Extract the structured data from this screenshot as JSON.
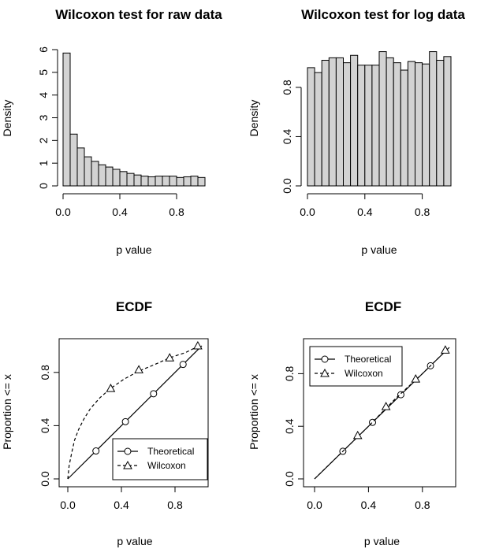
{
  "chart_data": [
    {
      "type": "bar",
      "title": "Wilcoxon test for raw data",
      "xlabel": "p value",
      "ylabel": "Density",
      "bin_edges": [
        0.0,
        0.05,
        0.1,
        0.15,
        0.2,
        0.25,
        0.3,
        0.35,
        0.4,
        0.45,
        0.5,
        0.55,
        0.6,
        0.65,
        0.7,
        0.75,
        0.8,
        0.85,
        0.9,
        0.95,
        1.0
      ],
      "values": [
        5.85,
        2.28,
        1.67,
        1.28,
        1.08,
        0.93,
        0.83,
        0.73,
        0.63,
        0.55,
        0.48,
        0.43,
        0.4,
        0.43,
        0.43,
        0.43,
        0.37,
        0.4,
        0.43,
        0.37
      ],
      "xlim": [
        0,
        1
      ],
      "ylim": [
        0,
        6
      ],
      "xticks": [
        0.0,
        0.4,
        0.8
      ],
      "xtick_labels": [
        "0.0",
        "0.4",
        "0.8"
      ],
      "yticks": [
        0,
        1,
        2,
        3,
        4,
        5,
        6
      ],
      "ytick_labels": [
        "0",
        "1",
        "2",
        "3",
        "4",
        "5",
        "6"
      ],
      "bar_color": "#d3d3d3",
      "grid": false
    },
    {
      "type": "bar",
      "title": "Wilcoxon test for log data",
      "xlabel": "p value",
      "ylabel": "Density",
      "bin_edges": [
        0.0,
        0.05,
        0.1,
        0.15,
        0.2,
        0.25,
        0.3,
        0.35,
        0.4,
        0.45,
        0.5,
        0.55,
        0.6,
        0.65,
        0.7,
        0.75,
        0.8,
        0.85,
        0.9,
        0.95,
        1.0
      ],
      "values": [
        0.96,
        0.92,
        1.02,
        1.04,
        1.04,
        1.0,
        1.06,
        0.98,
        0.98,
        0.98,
        1.09,
        1.04,
        1.0,
        0.94,
        1.01,
        1.0,
        0.99,
        1.09,
        1.02,
        1.05
      ],
      "xlim": [
        0,
        1
      ],
      "ylim": [
        0,
        1.1
      ],
      "xticks": [
        0.0,
        0.4,
        0.8
      ],
      "xtick_labels": [
        "0.0",
        "0.4",
        "0.8"
      ],
      "yticks": [
        0.0,
        0.4,
        0.8
      ],
      "ytick_labels": [
        "0.0",
        "0.4",
        "0.8"
      ],
      "bar_color": "#d3d3d3",
      "grid": false
    },
    {
      "type": "line",
      "title": "ECDF",
      "xlabel": "p value",
      "ylabel": "Proportion <= x",
      "xlim": [
        0,
        1
      ],
      "ylim": [
        0,
        1
      ],
      "xticks": [
        0.0,
        0.4,
        0.8
      ],
      "xtick_labels": [
        "0.0",
        "0.4",
        "0.8"
      ],
      "yticks": [
        0.0,
        0.4,
        0.8
      ],
      "ytick_labels": [
        "0.0",
        "0.4",
        "0.8"
      ],
      "legend_position": "bottom-right",
      "series": [
        {
          "name": "Theoretical",
          "line": "solid",
          "marker": "circle",
          "x": [
            0.0,
            1.0
          ],
          "y": [
            0.0,
            1.0
          ],
          "marker_x": [
            0.21,
            0.43,
            0.64,
            0.86
          ],
          "marker_y": [
            0.21,
            0.43,
            0.64,
            0.86
          ]
        },
        {
          "name": "Wilcoxon",
          "line": "dashed",
          "marker": "triangle",
          "x": [
            0.0,
            0.01,
            0.03,
            0.05,
            0.08,
            0.12,
            0.17,
            0.24,
            0.32,
            0.42,
            0.53,
            0.65,
            0.76,
            0.88,
            0.98
          ],
          "y": [
            0.0,
            0.1,
            0.2,
            0.29,
            0.37,
            0.45,
            0.53,
            0.61,
            0.68,
            0.75,
            0.81,
            0.86,
            0.91,
            0.95,
            1.0
          ],
          "marker_x": [
            0.32,
            0.53,
            0.76,
            0.97
          ],
          "marker_y": [
            0.68,
            0.82,
            0.91,
            1.0
          ]
        }
      ]
    },
    {
      "type": "line",
      "title": "ECDF",
      "xlabel": "p value",
      "ylabel": "Proportion <= x",
      "xlim": [
        0,
        1
      ],
      "ylim": [
        0,
        1
      ],
      "xticks": [
        0.0,
        0.4,
        0.8
      ],
      "xtick_labels": [
        "0.0",
        "0.4",
        "0.8"
      ],
      "yticks": [
        0.0,
        0.4,
        0.8
      ],
      "ytick_labels": [
        "0.0",
        "0.4",
        "0.8"
      ],
      "legend_position": "top-left",
      "series": [
        {
          "name": "Theoretical",
          "line": "solid",
          "marker": "circle",
          "x": [
            0.0,
            1.0
          ],
          "y": [
            0.0,
            1.0
          ],
          "marker_x": [
            0.21,
            0.43,
            0.64,
            0.86
          ],
          "marker_y": [
            0.21,
            0.43,
            0.64,
            0.86
          ]
        },
        {
          "name": "Wilcoxon",
          "line": "dashed",
          "marker": "triangle",
          "x": [
            0.0,
            0.2,
            0.4,
            0.6,
            0.8,
            0.98
          ],
          "y": [
            0.0,
            0.2,
            0.4,
            0.61,
            0.8,
            0.98
          ],
          "marker_x": [
            0.32,
            0.53,
            0.75,
            0.97
          ],
          "marker_y": [
            0.33,
            0.55,
            0.76,
            0.98
          ]
        }
      ]
    }
  ]
}
